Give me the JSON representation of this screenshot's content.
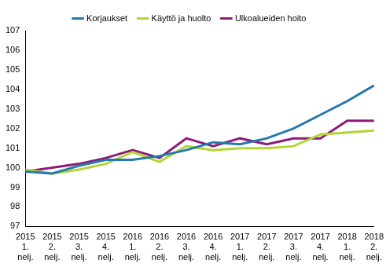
{
  "chart_data": {
    "type": "line",
    "categories": [
      [
        "2015",
        "1.",
        "nelj."
      ],
      [
        "2015",
        "2.",
        "nelj."
      ],
      [
        "2015",
        "3.",
        "nelj."
      ],
      [
        "2015",
        "4.",
        "nelj."
      ],
      [
        "2016",
        "1.",
        "nelj."
      ],
      [
        "2016",
        "2.",
        "nelj."
      ],
      [
        "2016",
        "3.",
        "nelj."
      ],
      [
        "2016",
        "4.",
        "nelj."
      ],
      [
        "2017",
        "1.",
        "nelj."
      ],
      [
        "2017",
        "2.",
        "nelj."
      ],
      [
        "2017",
        "3.",
        "nelj."
      ],
      [
        "2017",
        "4.",
        "nelj."
      ],
      [
        "2018",
        "1.",
        "nelj."
      ],
      [
        "2018",
        "2.",
        "nelj."
      ]
    ],
    "series": [
      {
        "name": "Korjaukset",
        "color": "#2479ad",
        "values": [
          99.8,
          99.7,
          100.1,
          100.4,
          100.4,
          100.6,
          100.9,
          101.3,
          101.2,
          101.5,
          102.0,
          102.7,
          103.4,
          104.2
        ]
      },
      {
        "name": "Käyttö ja huolto",
        "color": "#b4d334",
        "values": [
          99.9,
          99.7,
          99.9,
          100.2,
          100.8,
          100.3,
          101.1,
          100.9,
          101.0,
          101.0,
          101.1,
          101.7,
          101.8,
          101.9
        ]
      },
      {
        "name": "Ulkoalueiden hoito",
        "color": "#8c1d7a",
        "values": [
          99.8,
          100.0,
          100.2,
          100.5,
          100.9,
          100.5,
          101.5,
          101.1,
          101.5,
          101.2,
          101.5,
          101.5,
          102.4,
          102.4
        ]
      }
    ],
    "ylim": [
      97,
      107
    ],
    "yticks": [
      97,
      98,
      99,
      100,
      101,
      102,
      103,
      104,
      105,
      106,
      107
    ],
    "grid": false,
    "legend": "top"
  }
}
